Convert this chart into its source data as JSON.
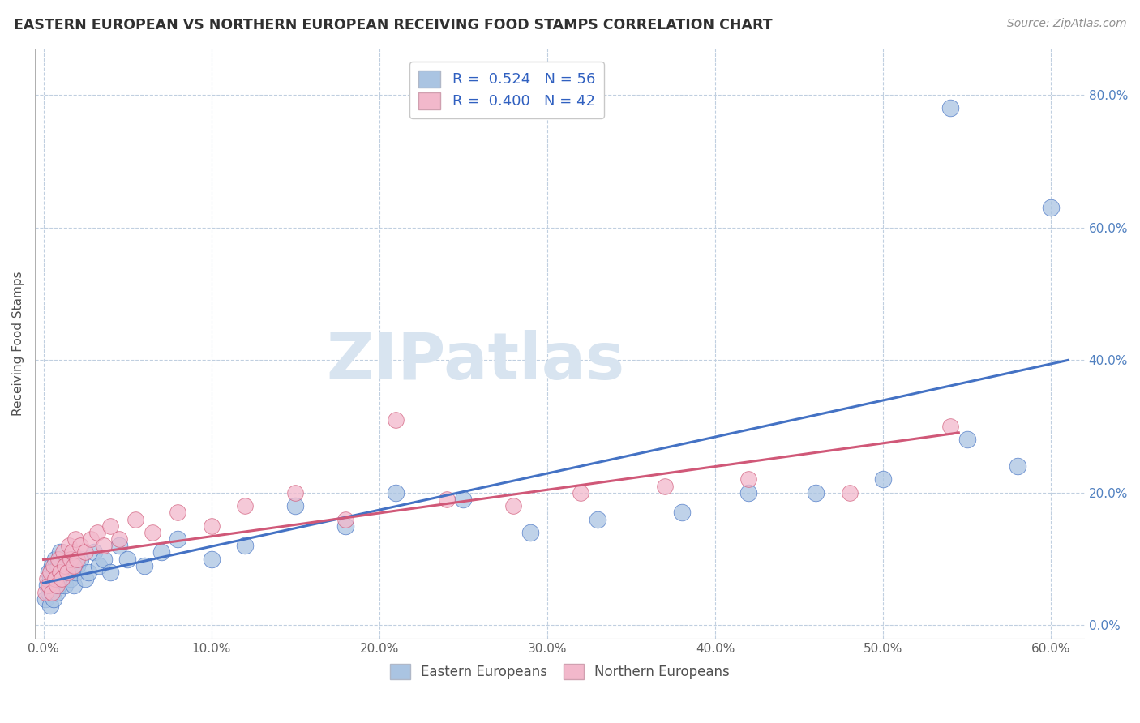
{
  "title": "EASTERN EUROPEAN VS NORTHERN EUROPEAN RECEIVING FOOD STAMPS CORRELATION CHART",
  "source": "Source: ZipAtlas.com",
  "ylabel_label": "Receiving Food Stamps",
  "legend_r1": "R =  0.524   N = 56",
  "legend_r2": "R =  0.400   N = 42",
  "color_eastern": "#aac4e2",
  "color_northern": "#f2b8cb",
  "color_line_eastern": "#4472c4",
  "color_line_northern": "#d05878",
  "color_title": "#303030",
  "color_source": "#909090",
  "color_legend_text": "#3060c0",
  "color_legend_n": "#303030",
  "background_color": "#ffffff",
  "grid_color": "#c0cfe0",
  "watermark_color": "#d8e4f0",
  "watermark": "ZIPatlas",
  "eastern_x": [
    0.001,
    0.002,
    0.003,
    0.003,
    0.004,
    0.004,
    0.005,
    0.005,
    0.006,
    0.006,
    0.007,
    0.007,
    0.008,
    0.008,
    0.009,
    0.009,
    0.01,
    0.01,
    0.011,
    0.012,
    0.013,
    0.014,
    0.015,
    0.016,
    0.017,
    0.018,
    0.019,
    0.02,
    0.022,
    0.025,
    0.027,
    0.03,
    0.033,
    0.036,
    0.04,
    0.045,
    0.05,
    0.06,
    0.07,
    0.08,
    0.1,
    0.12,
    0.15,
    0.18,
    0.21,
    0.25,
    0.29,
    0.33,
    0.38,
    0.42,
    0.46,
    0.5,
    0.54,
    0.55,
    0.58,
    0.6
  ],
  "eastern_y": [
    0.04,
    0.06,
    0.05,
    0.08,
    0.03,
    0.07,
    0.05,
    0.09,
    0.04,
    0.07,
    0.06,
    0.1,
    0.05,
    0.08,
    0.06,
    0.09,
    0.07,
    0.11,
    0.08,
    0.07,
    0.06,
    0.09,
    0.08,
    0.07,
    0.1,
    0.06,
    0.08,
    0.09,
    0.1,
    0.07,
    0.08,
    0.11,
    0.09,
    0.1,
    0.08,
    0.12,
    0.1,
    0.09,
    0.11,
    0.13,
    0.1,
    0.12,
    0.18,
    0.15,
    0.2,
    0.19,
    0.14,
    0.16,
    0.17,
    0.2,
    0.2,
    0.22,
    0.78,
    0.28,
    0.24,
    0.63
  ],
  "northern_x": [
    0.001,
    0.002,
    0.003,
    0.004,
    0.005,
    0.006,
    0.007,
    0.008,
    0.009,
    0.01,
    0.011,
    0.012,
    0.013,
    0.014,
    0.015,
    0.016,
    0.017,
    0.018,
    0.019,
    0.02,
    0.022,
    0.025,
    0.028,
    0.032,
    0.036,
    0.04,
    0.045,
    0.055,
    0.065,
    0.08,
    0.1,
    0.12,
    0.15,
    0.18,
    0.21,
    0.24,
    0.28,
    0.32,
    0.37,
    0.42,
    0.48,
    0.54
  ],
  "northern_y": [
    0.05,
    0.07,
    0.06,
    0.08,
    0.05,
    0.09,
    0.07,
    0.06,
    0.1,
    0.08,
    0.07,
    0.11,
    0.09,
    0.08,
    0.12,
    0.1,
    0.11,
    0.09,
    0.13,
    0.1,
    0.12,
    0.11,
    0.13,
    0.14,
    0.12,
    0.15,
    0.13,
    0.16,
    0.14,
    0.17,
    0.15,
    0.18,
    0.2,
    0.16,
    0.31,
    0.19,
    0.18,
    0.2,
    0.21,
    0.22,
    0.2,
    0.3
  ],
  "xlim": [
    -0.005,
    0.62
  ],
  "ylim": [
    -0.02,
    0.87
  ],
  "xticks": [
    0.0,
    0.1,
    0.2,
    0.3,
    0.4,
    0.5,
    0.6
  ],
  "yticks": [
    0.0,
    0.2,
    0.4,
    0.6,
    0.8
  ],
  "figsize": [
    14.06,
    8.92
  ],
  "dpi": 100
}
